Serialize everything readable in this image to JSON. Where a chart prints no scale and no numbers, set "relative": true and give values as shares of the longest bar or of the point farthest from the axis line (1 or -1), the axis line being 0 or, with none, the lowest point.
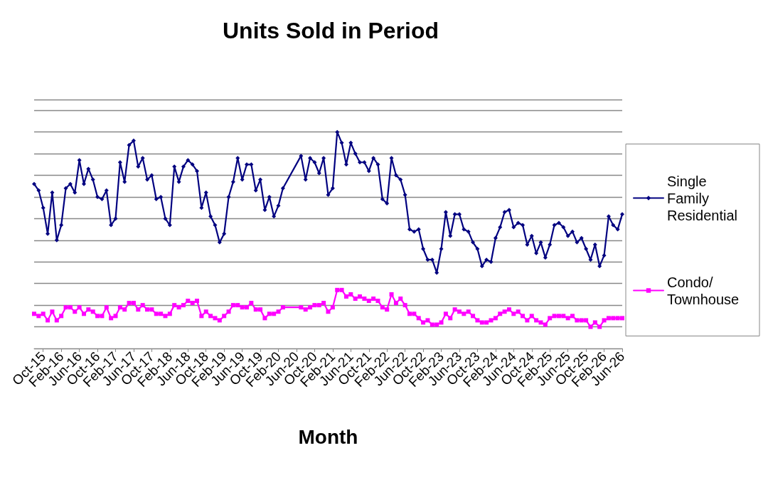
{
  "chart_data": {
    "type": "line",
    "title": "Units Sold in Period",
    "xlabel": "Month",
    "relative": true,
    "grid": "y",
    "legend": "right",
    "categories": [
      null,
      null,
      "Oct-15",
      null,
      null,
      null,
      "Feb-16",
      null,
      null,
      null,
      "Jun-16",
      null,
      null,
      null,
      "Oct-16",
      null,
      null,
      null,
      "Feb-17",
      null,
      null,
      null,
      "Jun-17",
      null,
      null,
      null,
      "Oct-17",
      null,
      null,
      null,
      "Feb-18",
      null,
      null,
      null,
      "Jun-18",
      null,
      null,
      null,
      "Oct-18",
      null,
      null,
      null,
      "Feb-19",
      null,
      null,
      null,
      "Jun-19",
      null,
      null,
      null,
      "Oct-19",
      null,
      null,
      null,
      "Feb-20",
      null,
      null,
      null,
      "Jun-20",
      null,
      null,
      null,
      "Oct-20",
      null,
      null,
      null,
      "Feb-21",
      null,
      null,
      null,
      "Jun-21",
      null,
      null,
      null,
      "Oct-21",
      null,
      null,
      null,
      "Feb-22",
      null,
      null,
      null,
      "Jun-22",
      null,
      null,
      null,
      "Oct-22",
      null,
      null,
      null,
      "Feb-23",
      null,
      null,
      null,
      "Jun-23",
      null,
      null,
      null,
      "Oct-23",
      null,
      null,
      null,
      "Feb-24",
      null,
      null,
      null,
      "Jun-24",
      null,
      null,
      null,
      "Oct-24",
      null,
      null,
      null,
      "Feb-25",
      null,
      null,
      null,
      "Jun-25",
      null,
      null,
      null,
      "Oct-25",
      null,
      null,
      null,
      "Feb-26",
      null,
      null,
      null,
      "Jun-26"
    ],
    "series": [
      {
        "name": "Single Family Residential",
        "color": "#000080",
        "marker": "diamond",
        "values": [
          0.76,
          0.73,
          0.65,
          0.53,
          0.72,
          0.5,
          0.57,
          0.74,
          0.76,
          0.72,
          0.87,
          0.76,
          0.83,
          0.78,
          0.7,
          0.69,
          0.73,
          0.57,
          0.6,
          0.86,
          0.77,
          0.94,
          0.96,
          0.84,
          0.88,
          0.78,
          0.8,
          0.69,
          0.7,
          0.6,
          0.57,
          0.84,
          0.77,
          0.84,
          0.87,
          0.85,
          0.82,
          0.65,
          0.72,
          0.61,
          0.57,
          0.49,
          0.53,
          0.7,
          0.77,
          0.88,
          0.78,
          0.85,
          0.85,
          0.73,
          0.78,
          0.64,
          0.7,
          0.61,
          0.66,
          0.74,
          null,
          null,
          null,
          0.89,
          0.78,
          0.88,
          0.86,
          0.81,
          0.88,
          0.71,
          0.74,
          1.0,
          0.95,
          0.85,
          0.95,
          0.9,
          0.86,
          0.86,
          0.82,
          0.88,
          0.85,
          0.69,
          0.67,
          0.88,
          0.8,
          0.78,
          0.71,
          0.55,
          0.54,
          0.55,
          0.46,
          0.41,
          0.41,
          0.35,
          0.46,
          0.63,
          0.52,
          0.62,
          0.62,
          0.55,
          0.54,
          0.49,
          0.46,
          0.38,
          0.41,
          0.4,
          0.51,
          0.56,
          0.63,
          0.64,
          0.56,
          0.58,
          0.57,
          0.48,
          0.52,
          0.44,
          0.49,
          0.42,
          0.48,
          0.57,
          0.58,
          0.56,
          0.52,
          0.54,
          0.49,
          0.51,
          0.46,
          0.41,
          0.48,
          0.38,
          0.43,
          0.61,
          0.57,
          0.55,
          0.62
        ]
      },
      {
        "name": "Condo/Townhouse",
        "color": "#ff00ff",
        "marker": "square",
        "values": [
          0.16,
          0.15,
          0.16,
          0.13,
          0.17,
          0.13,
          0.15,
          0.19,
          0.19,
          0.17,
          0.19,
          0.16,
          0.18,
          0.17,
          0.15,
          0.15,
          0.19,
          0.14,
          0.15,
          0.19,
          0.18,
          0.21,
          0.21,
          0.18,
          0.2,
          0.18,
          0.18,
          0.16,
          0.16,
          0.15,
          0.16,
          0.2,
          0.19,
          0.2,
          0.22,
          0.21,
          0.22,
          0.15,
          0.17,
          0.15,
          0.14,
          0.13,
          0.15,
          0.17,
          0.2,
          0.2,
          0.19,
          0.19,
          0.21,
          0.18,
          0.18,
          0.14,
          0.16,
          0.16,
          0.17,
          0.19,
          null,
          null,
          null,
          0.19,
          0.18,
          0.19,
          0.2,
          0.2,
          0.21,
          0.17,
          0.19,
          0.27,
          0.27,
          0.24,
          0.25,
          0.23,
          0.24,
          0.23,
          0.22,
          0.23,
          0.22,
          0.19,
          0.18,
          0.25,
          0.21,
          0.23,
          0.2,
          0.16,
          0.16,
          0.14,
          0.12,
          0.13,
          0.11,
          0.11,
          0.12,
          0.16,
          0.14,
          0.18,
          0.17,
          0.16,
          0.17,
          0.15,
          0.13,
          0.12,
          0.12,
          0.13,
          0.14,
          0.16,
          0.17,
          0.18,
          0.16,
          0.17,
          0.15,
          0.13,
          0.15,
          0.13,
          0.12,
          0.11,
          0.14,
          0.15,
          0.15,
          0.15,
          0.14,
          0.15,
          0.13,
          0.13,
          0.13,
          0.1,
          0.12,
          0.1,
          0.13,
          0.14,
          0.14,
          0.14,
          0.14
        ]
      }
    ]
  }
}
